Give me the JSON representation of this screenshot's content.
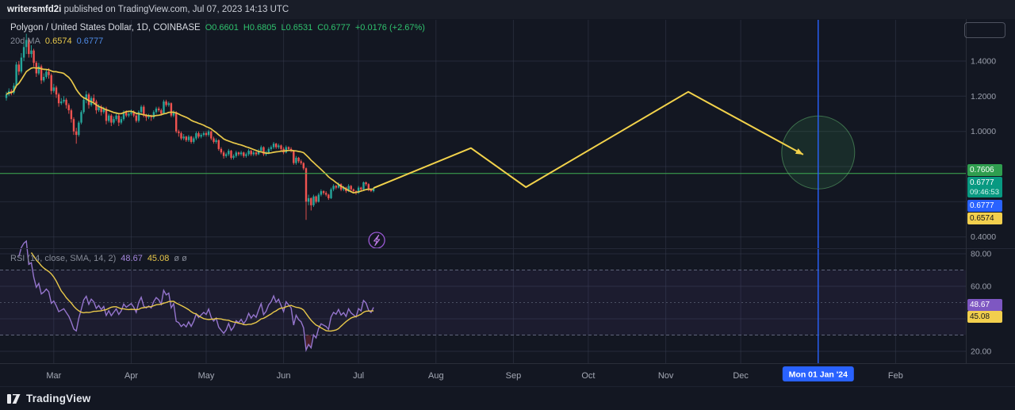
{
  "topbar": {
    "publisher": "writersmfd2i",
    "publish_info": " published on TradingView.com, Jul 07, 2023 14:13 UTC"
  },
  "header": {
    "symbol_title": "Polygon / United States Dollar, 1D, COINBASE",
    "ohlc_items": [
      "O0.6601",
      "H0.6805",
      "L0.6531",
      "C0.6777",
      "+0.0176 (+2.67%)"
    ],
    "ma_label": "20d MA",
    "ma_value": "0.6574",
    "line_value": "0.6777"
  },
  "rsi_legend": {
    "label": "RSI (14, close, SMA, 14, 2)",
    "value": "48.67",
    "ma_value": "45.08",
    "ghost": "ø ø"
  },
  "footer": {
    "brand": "TradingView"
  },
  "axis_badges": {
    "hline": {
      "label": "0.7606",
      "color": "#2f9e4f"
    },
    "last_price": {
      "label": "0.6777",
      "countdown": "09:46:53",
      "color": "#089981"
    },
    "blue": {
      "label": "0.6777",
      "color": "#2962ff"
    },
    "ma": {
      "label": "0.6574",
      "color": "#f2cf4d"
    },
    "rsi": {
      "label": "48.67",
      "color": "#7e57c2"
    },
    "rsi_ma": {
      "label": "45.08",
      "color": "#f2cf4d"
    }
  },
  "chart_data": {
    "type": "candlestick",
    "symbol": "Polygon / United States Dollar",
    "interval": "1D",
    "exchange": "COINBASE",
    "current_ohlc": {
      "o": 0.6601,
      "h": 0.6805,
      "l": 0.6531,
      "c": 0.6777,
      "change": "+0.0176 (+2.67%)"
    },
    "price_axis": {
      "ticks": [
        {
          "v": 1.4,
          "label": "1.4000"
        },
        {
          "v": 1.2,
          "label": "1.2000"
        },
        {
          "v": 1.0,
          "label": "1.0000"
        },
        {
          "v": 0.4,
          "label": "0.4000"
        }
      ],
      "grid": [
        1.4,
        1.2,
        1.0,
        0.8,
        0.6,
        0.4
      ]
    },
    "time_axis": {
      "months": [
        {
          "label": "Mar",
          "i": 19
        },
        {
          "label": "Apr",
          "i": 50
        },
        {
          "label": "May",
          "i": 80
        },
        {
          "label": "Jun",
          "i": 111
        },
        {
          "label": "Jul",
          "i": 141
        },
        {
          "label": "Aug",
          "i": 172
        },
        {
          "label": "Sep",
          "i": 203
        },
        {
          "label": "Oct",
          "i": 233
        },
        {
          "label": "Nov",
          "i": 264
        },
        {
          "label": "Dec",
          "i": 294
        },
        {
          "label": "Feb",
          "i": 356
        }
      ],
      "highlight": {
        "label": "Mon 01 Jan '24",
        "i": 325
      }
    },
    "ma_period": 20,
    "horizontal_line": {
      "price": 0.7606
    },
    "projection": {
      "points": [
        [
          147,
          0.6777
        ],
        [
          186,
          0.905
        ],
        [
          208,
          0.683
        ],
        [
          273,
          1.225
        ],
        [
          319,
          0.868
        ]
      ]
    },
    "highlight_circle": {
      "i": 325,
      "price": 0.88,
      "r": 46
    },
    "vertical_line": {
      "i": 325
    },
    "bolt_marker": {
      "i": 147
    },
    "rsi": {
      "period": 14,
      "ma_period": 14,
      "current": 48.67,
      "ma_current": 45.08,
      "label_levels": [
        {
          "v": 80,
          "label": "80.00"
        },
        {
          "v": 60,
          "label": "60.00"
        },
        {
          "v": 20,
          "label": "20.00"
        }
      ],
      "grid": [
        80,
        60,
        40,
        20
      ],
      "bands": {
        "upper": 70,
        "middle": 50,
        "lower": 30
      }
    },
    "colors": {
      "up": "#26a69a",
      "down": "#ef5350",
      "ma": "#e8c84a",
      "projection": "#f2d24b",
      "hline": "#3fae52",
      "vline": "#2962ff",
      "rsi": "#9575cd",
      "rsi_ma": "#e8c84a",
      "circle_fill": "rgba(61,155,86,0.16)",
      "circle_stroke": "rgba(94,178,110,0.55)"
    },
    "candles": [
      [
        1.19,
        1.225,
        1.175,
        1.21
      ],
      [
        1.21,
        1.245,
        1.2,
        1.23
      ],
      [
        1.23,
        1.24,
        1.205,
        1.22
      ],
      [
        1.22,
        1.275,
        1.21,
        1.26
      ],
      [
        1.26,
        1.395,
        1.25,
        1.38
      ],
      [
        1.38,
        1.4,
        1.32,
        1.34
      ],
      [
        1.34,
        1.445,
        1.33,
        1.42
      ],
      [
        1.42,
        1.5,
        1.4,
        1.48
      ],
      [
        1.48,
        1.555,
        1.44,
        1.52
      ],
      [
        1.52,
        1.53,
        1.42,
        1.44
      ],
      [
        1.44,
        1.49,
        1.42,
        1.46
      ],
      [
        1.46,
        1.47,
        1.37,
        1.39
      ],
      [
        1.39,
        1.4,
        1.31,
        1.33
      ],
      [
        1.33,
        1.39,
        1.32,
        1.37
      ],
      [
        1.37,
        1.38,
        1.27,
        1.29
      ],
      [
        1.29,
        1.33,
        1.28,
        1.31
      ],
      [
        1.31,
        1.355,
        1.3,
        1.34
      ],
      [
        1.34,
        1.36,
        1.3,
        1.32
      ],
      [
        1.32,
        1.33,
        1.21,
        1.23
      ],
      [
        1.23,
        1.27,
        1.22,
        1.25
      ],
      [
        1.25,
        1.26,
        1.19,
        1.21
      ],
      [
        1.21,
        1.22,
        1.14,
        1.16
      ],
      [
        1.16,
        1.19,
        1.15,
        1.17
      ],
      [
        1.17,
        1.2,
        1.16,
        1.18
      ],
      [
        1.18,
        1.19,
        1.13,
        1.15
      ],
      [
        1.15,
        1.16,
        1.1,
        1.12
      ],
      [
        1.12,
        1.13,
        1.05,
        1.07
      ],
      [
        1.07,
        1.08,
        0.98,
        1.0
      ],
      [
        1.0,
        1.02,
        0.93,
        0.98
      ],
      [
        0.98,
        1.06,
        0.97,
        1.05
      ],
      [
        1.05,
        1.12,
        1.04,
        1.11
      ],
      [
        1.11,
        1.19,
        1.1,
        1.18
      ],
      [
        1.18,
        1.23,
        1.16,
        1.21
      ],
      [
        1.21,
        1.22,
        1.13,
        1.15
      ],
      [
        1.15,
        1.2,
        1.14,
        1.19
      ],
      [
        1.19,
        1.21,
        1.15,
        1.17
      ],
      [
        1.17,
        1.18,
        1.1,
        1.12
      ],
      [
        1.12,
        1.155,
        1.11,
        1.14
      ],
      [
        1.14,
        1.15,
        1.09,
        1.11
      ],
      [
        1.11,
        1.14,
        1.1,
        1.13
      ],
      [
        1.13,
        1.14,
        1.04,
        1.06
      ],
      [
        1.06,
        1.1,
        1.05,
        1.09
      ],
      [
        1.09,
        1.1,
        1.03,
        1.05
      ],
      [
        1.05,
        1.085,
        1.04,
        1.07
      ],
      [
        1.07,
        1.1,
        1.06,
        1.09
      ],
      [
        1.09,
        1.1,
        1.03,
        1.05
      ],
      [
        1.05,
        1.085,
        1.04,
        1.07
      ],
      [
        1.07,
        1.12,
        1.06,
        1.11
      ],
      [
        1.11,
        1.12,
        1.08,
        1.09
      ],
      [
        1.09,
        1.115,
        1.08,
        1.1
      ],
      [
        1.1,
        1.125,
        1.09,
        1.11
      ],
      [
        1.11,
        1.12,
        1.08,
        1.09
      ],
      [
        1.09,
        1.1,
        1.05,
        1.06
      ],
      [
        1.06,
        1.12,
        1.05,
        1.11
      ],
      [
        1.11,
        1.15,
        1.1,
        1.14
      ],
      [
        1.14,
        1.15,
        1.08,
        1.09
      ],
      [
        1.09,
        1.1,
        1.06,
        1.08
      ],
      [
        1.08,
        1.1,
        1.07,
        1.09
      ],
      [
        1.09,
        1.095,
        1.06,
        1.08
      ],
      [
        1.08,
        1.12,
        1.07,
        1.11
      ],
      [
        1.11,
        1.14,
        1.1,
        1.13
      ],
      [
        1.13,
        1.14,
        1.11,
        1.12
      ],
      [
        1.12,
        1.13,
        1.09,
        1.1
      ],
      [
        1.1,
        1.18,
        1.095,
        1.17
      ],
      [
        1.17,
        1.18,
        1.14,
        1.15
      ],
      [
        1.15,
        1.17,
        1.14,
        1.16
      ],
      [
        1.16,
        1.165,
        1.08,
        1.09
      ],
      [
        1.09,
        1.12,
        1.08,
        1.11
      ],
      [
        1.11,
        1.115,
        0.99,
        1.0
      ],
      [
        1.0,
        1.01,
        0.97,
        0.99
      ],
      [
        0.99,
        1.0,
        0.95,
        0.96
      ],
      [
        0.96,
        0.985,
        0.95,
        0.97
      ],
      [
        0.97,
        0.975,
        0.94,
        0.95
      ],
      [
        0.95,
        0.98,
        0.94,
        0.97
      ],
      [
        0.97,
        0.975,
        0.93,
        0.94
      ],
      [
        0.94,
        0.97,
        0.93,
        0.96
      ],
      [
        0.96,
        1.0,
        0.95,
        0.99
      ],
      [
        0.99,
        1.0,
        0.96,
        0.97
      ],
      [
        0.97,
        0.99,
        0.96,
        0.98
      ],
      [
        0.98,
        1.0,
        0.97,
        0.99
      ],
      [
        0.99,
        1.0,
        0.97,
        0.98
      ],
      [
        0.98,
        1.01,
        0.97,
        1.0
      ],
      [
        1.0,
        1.005,
        0.95,
        0.96
      ],
      [
        0.96,
        0.97,
        0.93,
        0.94
      ],
      [
        0.94,
        0.96,
        0.93,
        0.95
      ],
      [
        0.95,
        0.955,
        0.89,
        0.9
      ],
      [
        0.9,
        0.91,
        0.87,
        0.88
      ],
      [
        0.88,
        0.89,
        0.845,
        0.86
      ],
      [
        0.86,
        0.88,
        0.85,
        0.87
      ],
      [
        0.87,
        0.9,
        0.86,
        0.89
      ],
      [
        0.89,
        0.895,
        0.84,
        0.85
      ],
      [
        0.85,
        0.87,
        0.84,
        0.86
      ],
      [
        0.86,
        0.89,
        0.85,
        0.88
      ],
      [
        0.88,
        0.885,
        0.86,
        0.87
      ],
      [
        0.87,
        0.89,
        0.86,
        0.88
      ],
      [
        0.88,
        0.885,
        0.85,
        0.86
      ],
      [
        0.86,
        0.88,
        0.85,
        0.87
      ],
      [
        0.87,
        0.9,
        0.86,
        0.89
      ],
      [
        0.89,
        0.895,
        0.86,
        0.87
      ],
      [
        0.87,
        0.89,
        0.86,
        0.88
      ],
      [
        0.88,
        0.885,
        0.86,
        0.87
      ],
      [
        0.87,
        0.9,
        0.865,
        0.89
      ],
      [
        0.89,
        0.92,
        0.88,
        0.91
      ],
      [
        0.91,
        0.915,
        0.86,
        0.87
      ],
      [
        0.87,
        0.89,
        0.86,
        0.88
      ],
      [
        0.88,
        0.91,
        0.87,
        0.9
      ],
      [
        0.9,
        0.92,
        0.89,
        0.91
      ],
      [
        0.91,
        0.94,
        0.9,
        0.93
      ],
      [
        0.93,
        0.935,
        0.9,
        0.91
      ],
      [
        0.91,
        0.93,
        0.9,
        0.92
      ],
      [
        0.92,
        0.925,
        0.89,
        0.9
      ],
      [
        0.9,
        0.91,
        0.87,
        0.88
      ],
      [
        0.88,
        0.92,
        0.875,
        0.91
      ],
      [
        0.91,
        0.915,
        0.89,
        0.9
      ],
      [
        0.9,
        0.91,
        0.88,
        0.89
      ],
      [
        0.89,
        0.895,
        0.81,
        0.82
      ],
      [
        0.82,
        0.86,
        0.81,
        0.85
      ],
      [
        0.85,
        0.855,
        0.82,
        0.83
      ],
      [
        0.83,
        0.84,
        0.81,
        0.82
      ],
      [
        0.82,
        0.825,
        0.78,
        0.79
      ],
      [
        0.79,
        0.795,
        0.497,
        0.6
      ],
      [
        0.6,
        0.64,
        0.58,
        0.62
      ],
      [
        0.62,
        0.625,
        0.55,
        0.58
      ],
      [
        0.58,
        0.64,
        0.57,
        0.63
      ],
      [
        0.63,
        0.635,
        0.59,
        0.6
      ],
      [
        0.6,
        0.65,
        0.595,
        0.64
      ],
      [
        0.64,
        0.67,
        0.63,
        0.66
      ],
      [
        0.66,
        0.665,
        0.64,
        0.65
      ],
      [
        0.65,
        0.66,
        0.63,
        0.64
      ],
      [
        0.64,
        0.645,
        0.61,
        0.62
      ],
      [
        0.62,
        0.68,
        0.615,
        0.67
      ],
      [
        0.67,
        0.7,
        0.66,
        0.69
      ],
      [
        0.69,
        0.695,
        0.67,
        0.68
      ],
      [
        0.68,
        0.71,
        0.675,
        0.7
      ],
      [
        0.7,
        0.705,
        0.66,
        0.67
      ],
      [
        0.67,
        0.69,
        0.66,
        0.68
      ],
      [
        0.68,
        0.685,
        0.65,
        0.66
      ],
      [
        0.66,
        0.7,
        0.655,
        0.69
      ],
      [
        0.69,
        0.695,
        0.66,
        0.67
      ],
      [
        0.67,
        0.675,
        0.65,
        0.66
      ],
      [
        0.66,
        0.665,
        0.64,
        0.65
      ],
      [
        0.65,
        0.69,
        0.645,
        0.68
      ],
      [
        0.68,
        0.685,
        0.66,
        0.67
      ],
      [
        0.67,
        0.715,
        0.665,
        0.71
      ],
      [
        0.71,
        0.715,
        0.69,
        0.7
      ],
      [
        0.7,
        0.705,
        0.66,
        0.67
      ],
      [
        0.67,
        0.675,
        0.655,
        0.6601
      ],
      [
        0.6601,
        0.6805,
        0.6531,
        0.6777
      ]
    ]
  }
}
